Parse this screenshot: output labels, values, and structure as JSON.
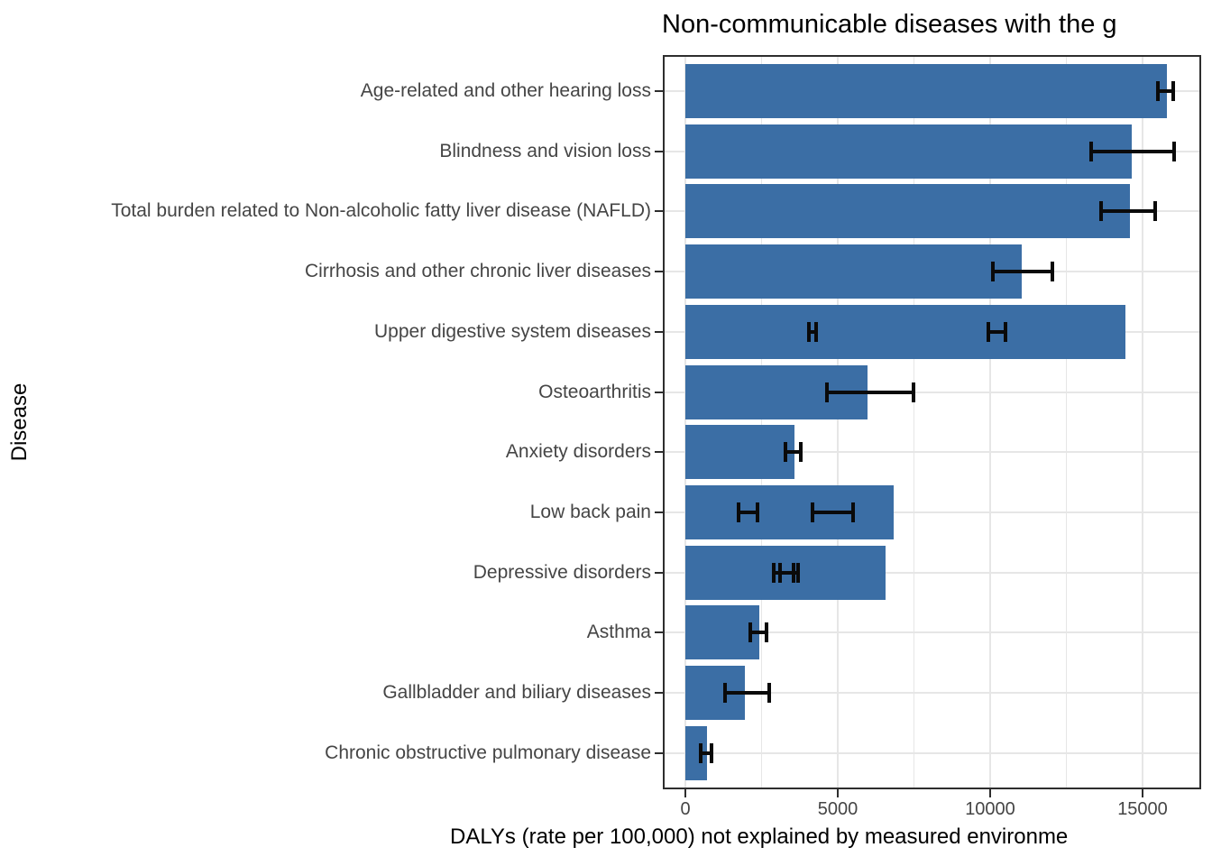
{
  "colors": {
    "bar": "#3b6ea5",
    "error_bar": "#0a0a0a",
    "grid_major": "#e6e6e6",
    "grid_minor": "#e6e6e6",
    "panel_border": "#2e2e2e",
    "axis_text": "#454545",
    "title_text": "#000000"
  },
  "chart_data": {
    "type": "bar",
    "orientation": "horizontal",
    "title": "Non-communicable diseases with the g",
    "xlabel": "DALYs (rate per 100,000) not explained by measured environme",
    "ylabel": "Disease",
    "xlim": [
      0,
      16900
    ],
    "x_ticks": [
      0,
      5000,
      10000,
      15000
    ],
    "x_minor_gridlines": [
      2500,
      7500,
      12500
    ],
    "grid": true,
    "legend": false,
    "categories": [
      "Age-related and other hearing loss",
      "Blindness and vision loss",
      "Total burden related to Non-alcoholic fatty liver disease (NAFLD)",
      "Cirrhosis and other chronic liver diseases",
      "Upper digestive system diseases",
      "Osteoarthritis",
      "Anxiety disorders",
      "Low back pain",
      "Depressive disorders",
      "Asthma",
      "Gallbladder and biliary diseases",
      "Chronic obstructive pulmonary disease"
    ],
    "values": [
      15800,
      14650,
      14600,
      11050,
      14450,
      5980,
      3580,
      6830,
      6570,
      2430,
      1950,
      710
    ],
    "error_bars": [
      [
        [
          15500,
          16000
        ]
      ],
      [
        [
          13300,
          16050
        ]
      ],
      [
        [
          13650,
          15400
        ]
      ],
      [
        [
          10100,
          12050
        ]
      ],
      [
        [
          4050,
          4300
        ],
        [
          9950,
          10500
        ]
      ],
      [
        [
          4650,
          7480
        ]
      ],
      [
        [
          3280,
          3790
        ]
      ],
      [
        [
          1750,
          2370
        ],
        [
          4170,
          5500
        ]
      ],
      [
        [
          2900,
          3550
        ],
        [
          3100,
          3700
        ]
      ],
      [
        [
          2130,
          2660
        ]
      ],
      [
        [
          1300,
          2750
        ]
      ],
      [
        [
          500,
          860
        ]
      ]
    ]
  }
}
